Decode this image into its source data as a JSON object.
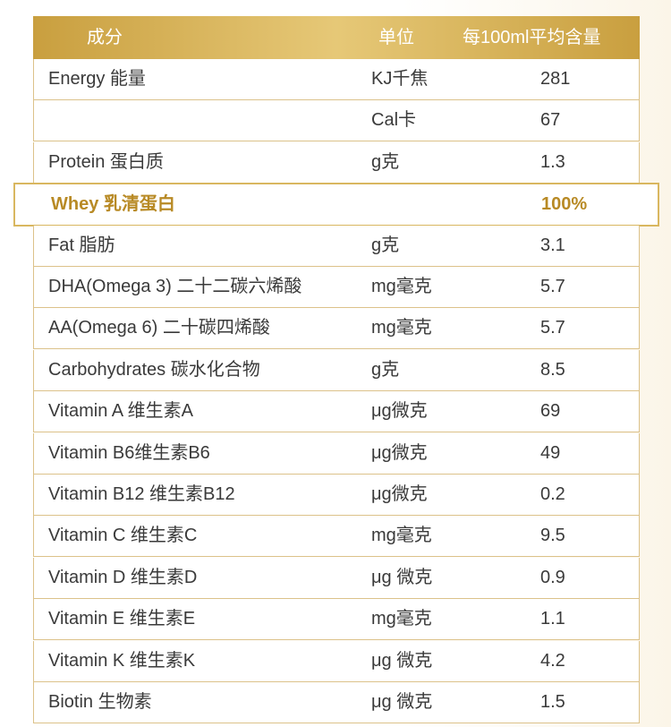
{
  "table": {
    "header": [
      "成分",
      "单位",
      "每100ml平均含量"
    ],
    "rows": [
      [
        "Energy 能量",
        "KJ千焦",
        "281"
      ],
      [
        null,
        "Cal卡",
        "67"
      ],
      [
        "Protein 蛋白质",
        "g克",
        "1.3"
      ],
      [
        "Whey 乳清蛋白",
        null,
        "100%"
      ],
      [
        "Fat 脂肪",
        "g克",
        "3.1"
      ],
      [
        "DHA(Omega 3) 二十二碳六烯酸",
        "mg毫克",
        "5.7"
      ],
      [
        "AA(Omega 6) 二十碳四烯酸",
        "mg毫克",
        "5.7"
      ],
      [
        "Carbohydrates 碳水化合物",
        "g克",
        "8.5"
      ],
      [
        "Vitamin A 维生素A",
        "μg微克",
        "69"
      ],
      [
        "Vitamin B6维生素B6",
        "μg微克",
        "49"
      ],
      [
        "Vitamin B12 维生素B12",
        "μg微克",
        "0.2"
      ],
      [
        "Vitamin C 维生素C",
        "mg毫克",
        "9.5"
      ],
      [
        "Vitamin D 维生素D",
        "μg 微克",
        "0.9"
      ],
      [
        "Vitamin E 维生素E",
        "mg毫克",
        "1.1"
      ],
      [
        "Vitamin K 维生素K",
        "μg 微克",
        "4.2"
      ],
      [
        "Biotin 生物素",
        "μg 微克",
        "1.5"
      ]
    ]
  }
}
